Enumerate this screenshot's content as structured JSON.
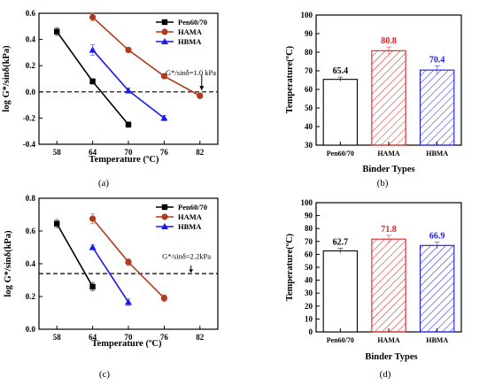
{
  "chart_data": [
    {
      "id": "a",
      "type": "line",
      "panel_label": "(a)",
      "xlabel": "Temperature (ºC)",
      "ylabel": "log G*/sinδ(kPa)",
      "xlim": [
        55,
        85
      ],
      "ylim": [
        -0.4,
        0.6
      ],
      "xticks": [
        "58",
        "64",
        "70",
        "76",
        "82"
      ],
      "yticks": [
        "-0.4",
        "-0.2",
        "0.0",
        "0.2",
        "0.4",
        "0.6"
      ],
      "legend_position": "top-right",
      "series": [
        {
          "name": "Pen60/70",
          "color": "#000000",
          "marker": "square",
          "x": [
            58,
            64,
            70
          ],
          "y": [
            0.46,
            0.08,
            -0.25
          ],
          "err": [
            0.03,
            0.02,
            0.02
          ]
        },
        {
          "name": "HAMA",
          "color": "#b03a1e",
          "marker": "circle",
          "x": [
            64,
            70,
            76,
            82
          ],
          "y": [
            0.57,
            0.32,
            0.12,
            -0.03
          ],
          "err": [
            0.03,
            0.02,
            0.015,
            0.02
          ]
        },
        {
          "name": "HBMA",
          "color": "#1a1aee",
          "marker": "triangle",
          "x": [
            64,
            70,
            76
          ],
          "y": [
            0.32,
            0.01,
            -0.2
          ],
          "err": [
            0.04,
            0.02,
            0.02
          ]
        }
      ],
      "reference_line": {
        "y": 0.0
      },
      "annotation": "G*/sinδ=1.0 kPa"
    },
    {
      "id": "b",
      "type": "bar",
      "panel_label": "(b)",
      "xlabel": "Binder Types",
      "ylabel": "Temperature(ºC)",
      "ylim": [
        30,
        100
      ],
      "yticks": [
        "30",
        "40",
        "50",
        "60",
        "70",
        "80",
        "90",
        "100"
      ],
      "categories": [
        "Pen60/70",
        "HAMA",
        "HBMA"
      ],
      "values": [
        65.4,
        80.8,
        70.4
      ],
      "labels": [
        "65.4",
        "80.8",
        "70.4"
      ],
      "err": [
        1.2,
        2.0,
        2.2
      ],
      "colors": [
        "#000000",
        "#e02020",
        "#1a1aee"
      ],
      "hatch": [
        false,
        true,
        true
      ]
    },
    {
      "id": "c",
      "type": "line",
      "panel_label": "(c)",
      "xlabel": "Temperature (ºC)",
      "ylabel": "log G*/sinδ(kPa)",
      "xlim": [
        55,
        85
      ],
      "ylim": [
        0.0,
        0.8
      ],
      "xticks": [
        "58",
        "64",
        "70",
        "76",
        "82"
      ],
      "yticks": [
        "0.0",
        "0.2",
        "0.4",
        "0.6",
        "0.8"
      ],
      "legend_position": "top-right",
      "series": [
        {
          "name": "Pen60/70",
          "color": "#000000",
          "marker": "square",
          "x": [
            58,
            64
          ],
          "y": [
            0.645,
            0.26
          ],
          "err": [
            0.025,
            0.025
          ]
        },
        {
          "name": "HAMA",
          "color": "#b03a1e",
          "marker": "circle",
          "x": [
            64,
            70,
            76
          ],
          "y": [
            0.675,
            0.41,
            0.19
          ],
          "err": [
            0.03,
            0.02,
            0.02
          ]
        },
        {
          "name": "HBMA",
          "color": "#1a1aee",
          "marker": "triangle",
          "x": [
            64,
            70
          ],
          "y": [
            0.5,
            0.165
          ],
          "err": [
            0.015,
            0.02
          ]
        }
      ],
      "reference_line": {
        "y": 0.34
      },
      "annotation": "G*/sinδ=2.2kPa"
    },
    {
      "id": "d",
      "type": "bar",
      "panel_label": "(d)",
      "xlabel": "Binder Types",
      "ylabel": "Temperature(ºC)",
      "ylim": [
        0,
        100
      ],
      "yticks": [
        "0",
        "10",
        "20",
        "30",
        "40",
        "50",
        "60",
        "70",
        "80",
        "90",
        "100"
      ],
      "categories": [
        "Pen60/70",
        "HAMA",
        "HBMA"
      ],
      "values": [
        62.7,
        71.8,
        66.9
      ],
      "labels": [
        "62.7",
        "71.8",
        "66.9"
      ],
      "err": [
        2.0,
        3.0,
        2.5
      ],
      "colors": [
        "#000000",
        "#e02020",
        "#1a1aee"
      ],
      "hatch": [
        false,
        true,
        true
      ]
    }
  ]
}
